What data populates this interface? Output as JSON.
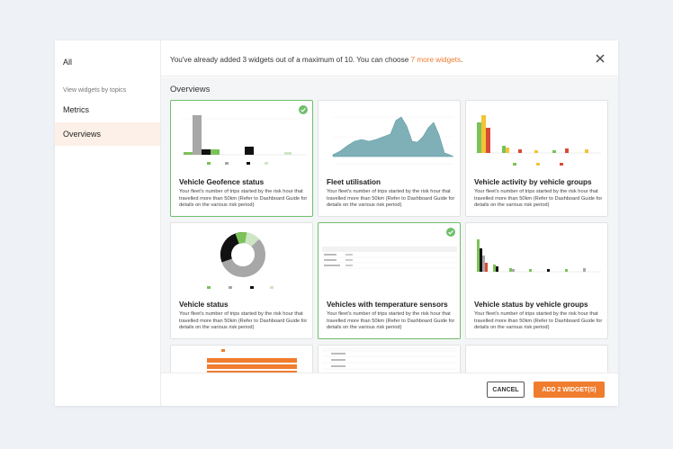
{
  "sidebar": {
    "all_label": "All",
    "section_label": "View widgets by topics",
    "items": [
      {
        "label": "Metrics"
      },
      {
        "label": "Overviews"
      }
    ]
  },
  "header": {
    "text": "You've already added 3 widgets out of a maximum of 10. You can choose ",
    "link": "7 more widgets",
    "suffix": "."
  },
  "content": {
    "section_title": "Overviews",
    "cards": [
      {
        "title": "Vehicle Geofence status",
        "description": "Your fleet's number of trips started by the risk hour that travelled more than 50km (Refer to Dashboard Guide for details on the various risk period)",
        "selected": true
      },
      {
        "title": "Fleet utilisation",
        "description": "Your fleet's number of trips started by the risk hour that travelled more than 50km (Refer to Dashboard Guide for details on the various risk period)",
        "selected": false
      },
      {
        "title": "Vehicle activity by vehicle groups",
        "description": "Your fleet's number of trips started by the risk hour that travelled more than 50km (Refer to Dashboard Guide for details on the various risk period)",
        "selected": false
      },
      {
        "title": "Vehicle status",
        "description": "Your fleet's number of trips started by the risk hour that travelled more than 50km (Refer to Dashboard Guide for details on the various risk period)",
        "selected": false
      },
      {
        "title": "Vehicles with temperature sensors",
        "description": "Your fleet's number of trips started by the risk hour that travelled more than 50km (Refer to Dashboard Guide for details on the various risk period)",
        "selected": true
      },
      {
        "title": "Vehicle status by vehicle groups",
        "description": "Your fleet's number of trips started by the risk hour that travelled more than 50km (Refer to Dashboard Guide for details on the various risk period)",
        "selected": false
      }
    ]
  },
  "footer": {
    "cancel_label": "CANCEL",
    "add_label": "ADD 2 WIDGET(S)"
  },
  "colors": {
    "accent": "#f07c2e",
    "selected_border": "#6fc06a",
    "sidebar_active_bg": "#fdf0e8",
    "area_fill": "#7fb0b8"
  },
  "icons": [
    "close-icon",
    "check-circle-icon"
  ]
}
